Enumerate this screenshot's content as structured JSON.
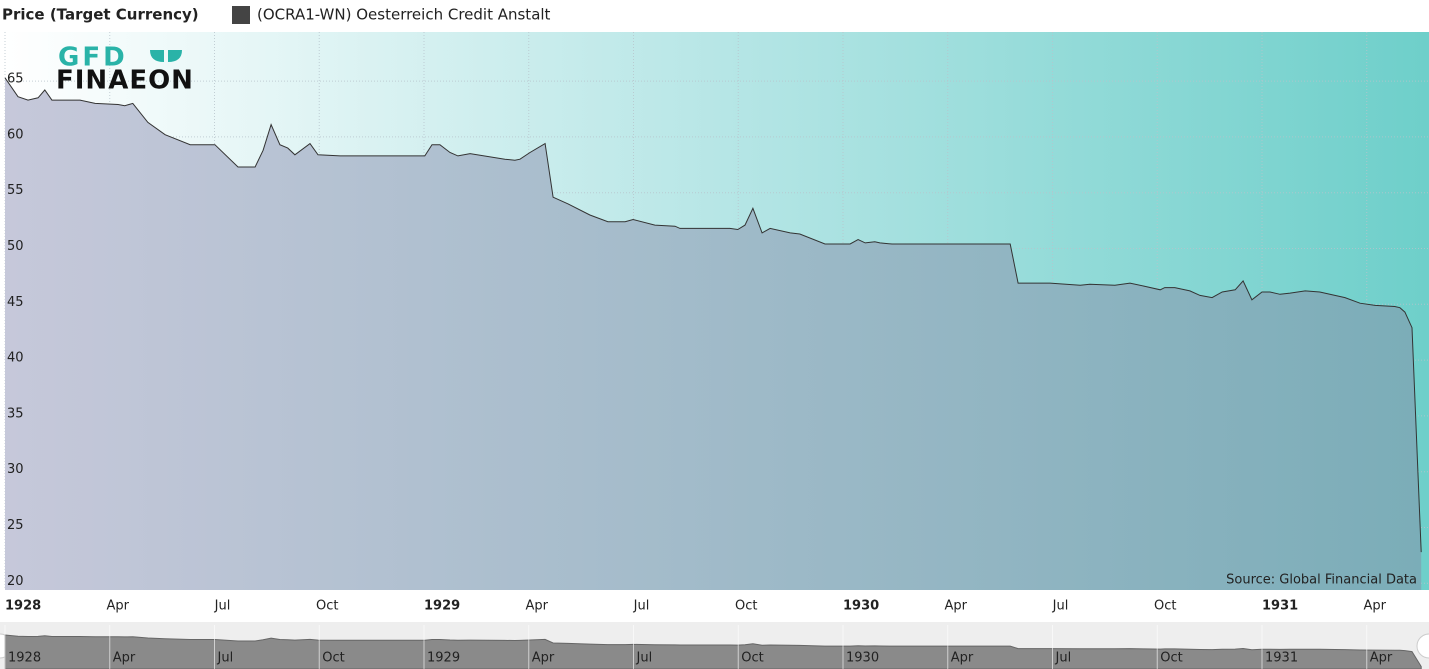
{
  "chart_data": {
    "type": "area",
    "title": "Price (Target Currency)",
    "logo": [
      "GFD",
      "FINAEON"
    ],
    "source": "Source: Global Financial Data",
    "x": [
      1928.0,
      1928.031,
      1928.055,
      1928.079,
      1928.095,
      1928.112,
      1928.179,
      1928.215,
      1928.27,
      1928.286,
      1928.305,
      1928.341,
      1928.382,
      1928.442,
      1928.501,
      1928.556,
      1928.597,
      1928.616,
      1928.635,
      1928.656,
      1928.675,
      1928.692,
      1928.728,
      1928.747,
      1928.8,
      1929.002,
      1929.019,
      1929.038,
      1929.062,
      1929.081,
      1929.11,
      1929.193,
      1929.217,
      1929.229,
      1929.253,
      1929.289,
      1929.308,
      1929.344,
      1929.396,
      1929.439,
      1929.48,
      1929.499,
      1929.551,
      1929.599,
      1929.611,
      1929.73,
      1929.749,
      1929.766,
      1929.785,
      1929.807,
      1929.826,
      1929.874,
      1929.897,
      1929.957,
      1930.017,
      1930.036,
      1930.053,
      1930.076,
      1930.088,
      1930.117,
      1930.399,
      1930.418,
      1930.494,
      1930.566,
      1930.589,
      1930.649,
      1930.685,
      1930.721,
      1930.757,
      1930.768,
      1930.792,
      1930.828,
      1930.852,
      1930.881,
      1930.905,
      1930.936,
      1930.955,
      1930.976,
      1931.0,
      1931.019,
      1931.043,
      1931.067,
      1931.103,
      1931.138,
      1931.174,
      1931.198,
      1931.234,
      1931.27,
      1931.317,
      1931.329,
      1931.341,
      1931.358,
      1931.38
    ],
    "series": [
      {
        "name": "(OCRA1-WN) Oesterreich Credit Anstalt",
        "color": "#333333",
        "values": [
          65.3,
          63.6,
          63.3,
          63.5,
          64.2,
          63.3,
          63.3,
          63.0,
          62.9,
          62.8,
          63.0,
          61.3,
          60.2,
          59.3,
          59.3,
          57.3,
          57.3,
          58.8,
          61.1,
          59.3,
          59.0,
          58.4,
          59.4,
          58.4,
          58.3,
          58.3,
          59.3,
          59.3,
          58.6,
          58.3,
          58.5,
          58.0,
          57.9,
          58.0,
          58.6,
          59.4,
          54.6,
          54.0,
          53.0,
          52.4,
          52.4,
          52.6,
          52.1,
          52.0,
          51.8,
          51.8,
          51.7,
          52.1,
          53.6,
          51.4,
          51.8,
          51.4,
          51.3,
          50.4,
          50.4,
          50.8,
          50.5,
          50.6,
          50.5,
          50.4,
          50.4,
          46.9,
          46.9,
          46.7,
          46.8,
          46.7,
          46.9,
          46.6,
          46.3,
          46.5,
          46.5,
          46.2,
          45.8,
          45.6,
          46.1,
          46.3,
          47.1,
          45.4,
          46.1,
          46.1,
          45.9,
          46.0,
          46.2,
          46.1,
          45.8,
          45.6,
          45.1,
          44.9,
          44.8,
          44.7,
          44.3,
          42.9,
          22.8
        ]
      }
    ],
    "legend_color": "#444444",
    "xlim": [
      1928.0,
      1931.4
    ],
    "xticks": [
      {
        "value": 1928,
        "label": "1928"
      },
      {
        "value": 1928.25,
        "label": "Apr"
      },
      {
        "value": 1928.5,
        "label": "Jul"
      },
      {
        "value": 1928.75,
        "label": "Oct"
      },
      {
        "value": 1929,
        "label": "1929"
      },
      {
        "value": 1929.25,
        "label": "Apr"
      },
      {
        "value": 1929.5,
        "label": "Jul"
      },
      {
        "value": 1929.75,
        "label": "Oct"
      },
      {
        "value": 1930,
        "label": "1930"
      },
      {
        "value": 1930.25,
        "label": "Apr"
      },
      {
        "value": 1930.5,
        "label": "Jul"
      },
      {
        "value": 1930.75,
        "label": "Oct"
      },
      {
        "value": 1931,
        "label": "1931"
      },
      {
        "value": 1931.25,
        "label": "Apr"
      }
    ],
    "ylim": [
      19.4,
      69.4
    ],
    "yticks": [
      20,
      25,
      30,
      35,
      40,
      45,
      50,
      55,
      60,
      65
    ],
    "grid": true
  }
}
